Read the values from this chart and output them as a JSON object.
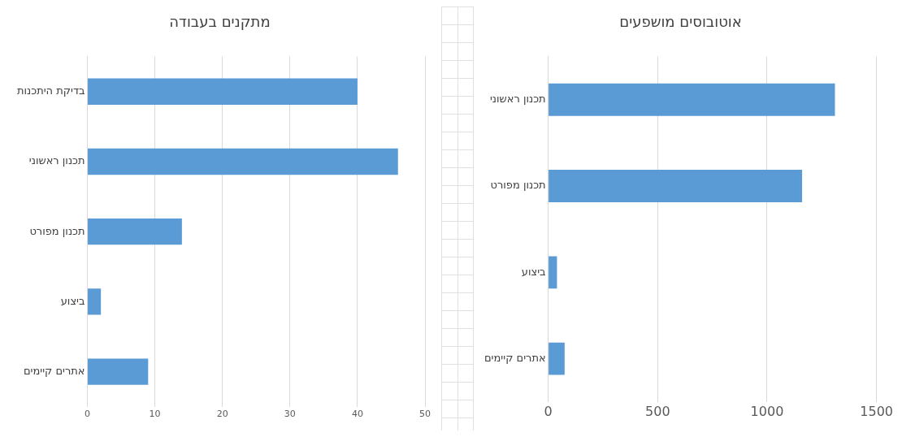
{
  "chart_data": [
    {
      "type": "bar",
      "orientation": "horizontal",
      "title": "מתקנים בעבודה",
      "categories": [
        "בדיקת היתכנות",
        "תכנון ראשוני",
        "תכנון מפורט",
        "ביצוע",
        "אתרים קיימים"
      ],
      "values": [
        40,
        46,
        14,
        2,
        9
      ],
      "color": "#5b9bd5",
      "xlim": [
        0,
        50
      ],
      "xticks": [
        0,
        10,
        20,
        30,
        40,
        50
      ],
      "grid": "x"
    },
    {
      "type": "bar",
      "orientation": "horizontal",
      "title": "אוטובוסים מושפעים",
      "categories": [
        "תכנון ראשוני",
        "תכנון מפורט",
        "ביצוע",
        "אתרים קיימים"
      ],
      "values": [
        1310,
        1160,
        40,
        75
      ],
      "color": "#5b9bd5",
      "xlim": [
        0,
        1500
      ],
      "xticks": [
        0,
        500,
        1000,
        1500
      ],
      "grid": "x"
    }
  ]
}
